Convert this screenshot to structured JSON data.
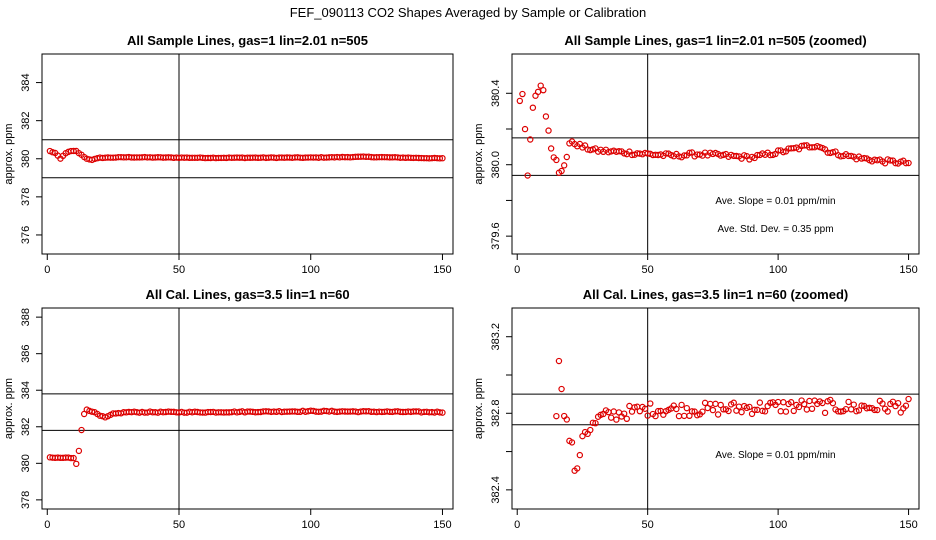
{
  "title": "FEF_090113  CO2 Shapes Averaged by Sample or Calibration",
  "chart_data": [
    {
      "type": "scatter",
      "title": "All Sample Lines, gas=1 lin=2.01 n=505",
      "ylabel": "approx. ppm",
      "xlim": [
        -2,
        154
      ],
      "ylim": [
        375,
        385.5
      ],
      "xticks": [
        0,
        50,
        100,
        150
      ],
      "yticks": [
        376,
        378,
        380,
        382,
        384
      ],
      "vline": 50,
      "hlines": [
        381.0,
        379.0
      ],
      "annotations": [],
      "series_color": "#dd0000",
      "x_range": [
        1,
        150
      ],
      "profile": [
        [
          1,
          380.4
        ],
        [
          3,
          380.3
        ],
        [
          5,
          380.0
        ],
        [
          7,
          380.3
        ],
        [
          9,
          380.4
        ],
        [
          11,
          380.4
        ],
        [
          13,
          380.2
        ],
        [
          15,
          380.0
        ],
        [
          17,
          379.95
        ],
        [
          20,
          380.05
        ],
        [
          30,
          380.08
        ],
        [
          60,
          380.05
        ],
        [
          100,
          380.06
        ],
        [
          120,
          380.1
        ],
        [
          150,
          380.02
        ]
      ],
      "noise": 0.015
    },
    {
      "type": "scatter",
      "title": "All Sample Lines, gas=1 lin=2.01 n=505 (zoomed)",
      "ylabel": "approx. ppm",
      "xlim": [
        -2,
        154
      ],
      "ylim": [
        379.5,
        380.62
      ],
      "xticks": [
        0,
        50,
        100,
        150
      ],
      "yticks": [
        379.6,
        379.8,
        380.0,
        380.2,
        380.4
      ],
      "ytick_labels": [
        "379.6",
        "",
        "380.0",
        "",
        "380.4"
      ],
      "vline": 50,
      "hlines": [
        380.15,
        379.94
      ],
      "annotations": [
        "Ave. Slope =  0.01  ppm/min",
        "Ave. Std. Dev. =  0.35  ppm"
      ],
      "series_color": "#dd0000",
      "x_range": [
        1,
        150
      ],
      "profile": [
        [
          1,
          380.35
        ],
        [
          2,
          380.4
        ],
        [
          3,
          380.2
        ],
        [
          4,
          379.94
        ],
        [
          5,
          380.15
        ],
        [
          6,
          380.31
        ],
        [
          7,
          380.39
        ],
        [
          8,
          380.42
        ],
        [
          9,
          380.44
        ],
        [
          10,
          380.42
        ],
        [
          11,
          380.28
        ],
        [
          12,
          380.2
        ],
        [
          13,
          380.1
        ],
        [
          14,
          380.05
        ],
        [
          15,
          380.02
        ],
        [
          16,
          379.95
        ],
        [
          17,
          379.96
        ],
        [
          18,
          380.0
        ],
        [
          19,
          380.05
        ],
        [
          20,
          380.12
        ],
        [
          22,
          380.12
        ],
        [
          25,
          380.1
        ],
        [
          30,
          380.08
        ],
        [
          40,
          380.07
        ],
        [
          50,
          380.06
        ],
        [
          60,
          380.05
        ],
        [
          70,
          380.06
        ],
        [
          80,
          380.05
        ],
        [
          90,
          380.04
        ],
        [
          100,
          380.07
        ],
        [
          110,
          380.1
        ],
        [
          115,
          380.11
        ],
        [
          120,
          380.07
        ],
        [
          130,
          380.04
        ],
        [
          140,
          380.02
        ],
        [
          150,
          380.01
        ]
      ],
      "noise": 0.012
    },
    {
      "type": "scatter",
      "title": "All Cal. Lines, gas=3.5 lin=1 n=60",
      "ylabel": "approx. ppm",
      "xlim": [
        -2,
        154
      ],
      "ylim": [
        377.5,
        388.5
      ],
      "xticks": [
        0,
        50,
        100,
        150
      ],
      "yticks": [
        378,
        380,
        382,
        384,
        386,
        388
      ],
      "ytick_labels": [
        "378",
        "380",
        "382",
        "384",
        "386",
        "388"
      ],
      "vline": 50,
      "hlines": [
        383.8,
        381.8
      ],
      "annotations": [],
      "series_color": "#dd0000",
      "x_range": [
        1,
        150
      ],
      "profile": [
        [
          1,
          380.3
        ],
        [
          10,
          380.3
        ],
        [
          11,
          380.0
        ],
        [
          12,
          380.7
        ],
        [
          13,
          381.8
        ],
        [
          14,
          382.7
        ],
        [
          15,
          382.95
        ],
        [
          17,
          382.85
        ],
        [
          20,
          382.6
        ],
        [
          22,
          382.5
        ],
        [
          25,
          382.7
        ],
        [
          30,
          382.8
        ],
        [
          60,
          382.8
        ],
        [
          100,
          382.85
        ],
        [
          150,
          382.8
        ]
      ],
      "noise": 0.03
    },
    {
      "type": "scatter",
      "title": "All Cal. Lines, gas=3.5 lin=1 n=60 (zoomed)",
      "ylabel": "approx. ppm",
      "xlim": [
        -2,
        154
      ],
      "ylim": [
        382.3,
        383.35
      ],
      "xticks": [
        0,
        50,
        100,
        150
      ],
      "yticks": [
        382.4,
        382.6,
        382.8,
        383.0,
        383.2
      ],
      "ytick_labels": [
        "382.4",
        "",
        "382.8",
        "",
        "383.2"
      ],
      "vline": 50,
      "hlines": [
        382.9,
        382.74
      ],
      "annotations": [
        "Ave. Slope =  0.01  ppm/min"
      ],
      "series_color": "#dd0000",
      "x_range": [
        15,
        150
      ],
      "profile": [
        [
          15,
          382.81
        ],
        [
          16,
          383.05
        ],
        [
          17,
          382.95
        ],
        [
          18,
          382.82
        ],
        [
          19,
          382.75
        ],
        [
          20,
          382.67
        ],
        [
          21,
          382.62
        ],
        [
          22,
          382.52
        ],
        [
          23,
          382.48
        ],
        [
          25,
          382.7
        ],
        [
          28,
          382.72
        ],
        [
          32,
          382.78
        ],
        [
          40,
          382.8
        ],
        [
          50,
          382.82
        ],
        [
          70,
          382.82
        ],
        [
          90,
          382.83
        ],
        [
          110,
          382.84
        ],
        [
          130,
          382.83
        ],
        [
          150,
          382.84
        ]
      ],
      "noise": 0.035
    }
  ]
}
